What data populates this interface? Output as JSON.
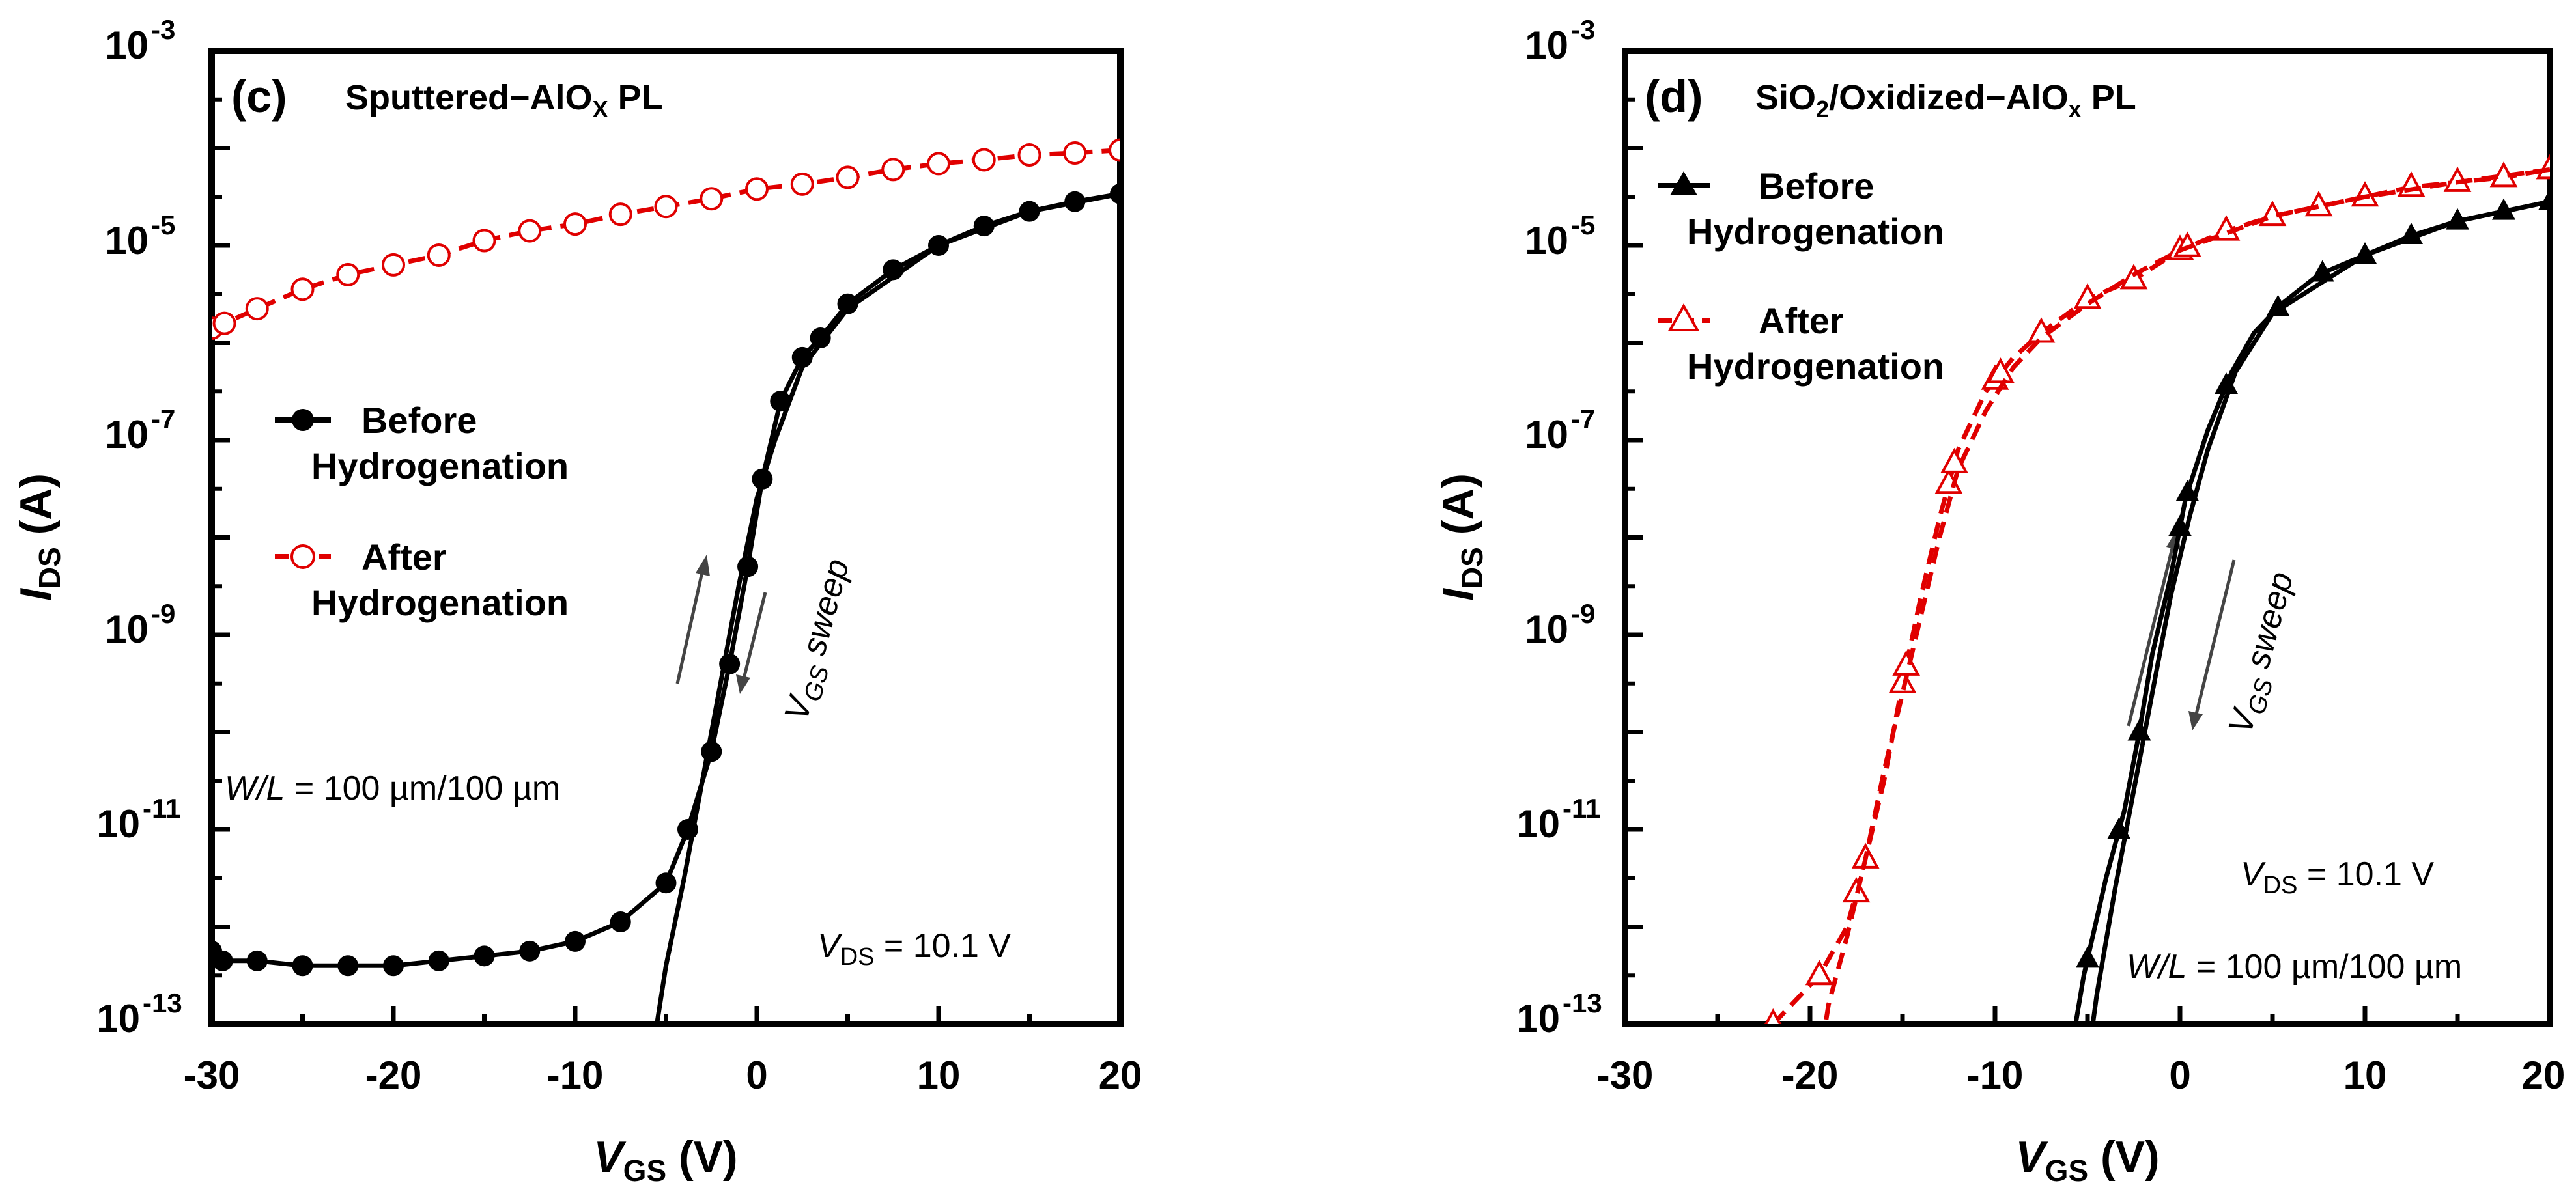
{
  "chart_data": [
    {
      "type": "line",
      "panel_letter": "(c)",
      "title_main": "Sputtered−AlO",
      "title_sub": "X",
      "title_end": " PL",
      "xlabel_main": "V",
      "xlabel_sub": "GS",
      "xlabel_unit": " (V)",
      "ylabel_main": "I",
      "ylabel_sub": "DS",
      "ylabel_unit": " (A)",
      "xlim": [
        -30,
        20
      ],
      "ylim_log10": [
        -13,
        -3
      ],
      "xticks": [
        "-30",
        "-20",
        "-10",
        "0",
        "10",
        "20"
      ],
      "yticks": [
        {
          "base": "10",
          "exp": "-3"
        },
        {
          "base": "10",
          "exp": "-5"
        },
        {
          "base": "10",
          "exp": "-7"
        },
        {
          "base": "10",
          "exp": "-9"
        },
        {
          "base": "10",
          "exp": "-11"
        },
        {
          "base": "10",
          "exp": "-13"
        }
      ],
      "legend": [
        {
          "line1": "Before",
          "line2": "Hydrogenation",
          "color": "#000000",
          "marker": "filled-circle",
          "dash": "solid"
        },
        {
          "line1": "After",
          "line2": "Hydrogenation",
          "color": "#e00000",
          "marker": "open-circle",
          "dash": "dashed"
        }
      ],
      "annotations": {
        "wl_it": "W/L",
        "wl_rest": " = 100 µm/100 µm",
        "vds_v": "V",
        "vds_sub": "DS",
        "vds_rest": " = 10.1 V",
        "sweep_v": "V",
        "sweep_sub": "GS",
        "sweep_rest": " sweep"
      },
      "series": [
        {
          "name": "Before Hydrogenation (forward)",
          "color": "#000000",
          "marker": "filled-circle",
          "x": [
            -30,
            -29.4,
            -27.5,
            -25,
            -22.5,
            -20,
            -17.5,
            -15,
            -12.5,
            -10,
            -7.5,
            -5,
            -3.8,
            -2.5,
            -1.5,
            -0.5,
            0.3,
            1.3,
            2.5,
            3.5,
            5,
            7.5,
            10,
            12.5,
            15,
            17.5,
            20
          ],
          "y_log10": [
            -12.25,
            -12.35,
            -12.35,
            -12.4,
            -12.4,
            -12.4,
            -12.35,
            -12.3,
            -12.25,
            -12.15,
            -11.95,
            -11.55,
            -11.0,
            -10.2,
            -9.3,
            -8.3,
            -7.4,
            -6.6,
            -6.15,
            -5.95,
            -5.6,
            -5.25,
            -5.0,
            -4.8,
            -4.65,
            -4.55,
            -4.47
          ]
        },
        {
          "name": "Before Hydrogenation (reverse)",
          "color": "#000000",
          "marker": "none",
          "x": [
            20,
            15,
            10,
            5,
            2.5,
            1,
            0,
            -1,
            -2,
            -3,
            -4,
            -5,
            -5.5,
            -6
          ],
          "y_log10": [
            -4.47,
            -4.65,
            -5.0,
            -5.65,
            -6.25,
            -7.0,
            -7.6,
            -8.5,
            -9.5,
            -10.5,
            -11.5,
            -12.4,
            -13.0,
            -13.4
          ]
        },
        {
          "name": "After Hydrogenation",
          "color": "#e00000",
          "marker": "open-circle",
          "x": [
            -30,
            -29.3,
            -27.5,
            -25,
            -22.5,
            -20,
            -17.5,
            -15,
            -12.5,
            -10,
            -7.5,
            -5,
            -2.5,
            0,
            2.5,
            5,
            7.5,
            10,
            12.5,
            15,
            17.5,
            20
          ],
          "y_log10": [
            -5.85,
            -5.8,
            -5.65,
            -5.45,
            -5.3,
            -5.2,
            -5.1,
            -4.95,
            -4.85,
            -4.78,
            -4.68,
            -4.6,
            -4.52,
            -4.42,
            -4.37,
            -4.3,
            -4.22,
            -4.16,
            -4.12,
            -4.07,
            -4.05,
            -4.02
          ]
        }
      ]
    },
    {
      "type": "line",
      "panel_letter": "(d)",
      "title_main": "SiO",
      "title_sub2": "2",
      "title_mid": "/Oxidized−AlO",
      "title_sub": "x",
      "title_end": " PL",
      "xlabel_main": "V",
      "xlabel_sub": "GS",
      "xlabel_unit": " (V)",
      "ylabel_main": "I",
      "ylabel_sub": "DS",
      "ylabel_unit": " (A)",
      "xlim": [
        -30,
        20
      ],
      "ylim_log10": [
        -13,
        -3
      ],
      "xticks": [
        "-30",
        "-20",
        "-10",
        "0",
        "10",
        "20"
      ],
      "yticks": [
        {
          "base": "10",
          "exp": "-3"
        },
        {
          "base": "10",
          "exp": "-5"
        },
        {
          "base": "10",
          "exp": "-7"
        },
        {
          "base": "10",
          "exp": "-9"
        },
        {
          "base": "10",
          "exp": "-11"
        },
        {
          "base": "10",
          "exp": "-13"
        }
      ],
      "legend": [
        {
          "line1": "Before",
          "line2": "Hydrogenation",
          "color": "#000000",
          "marker": "filled-triangle",
          "dash": "solid"
        },
        {
          "line1": "After",
          "line2": "Hydrogenation",
          "color": "#e00000",
          "marker": "open-triangle",
          "dash": "dashed"
        }
      ],
      "annotations": {
        "vds_v": "V",
        "vds_sub": "DS",
        "vds_rest": " = 10.1 V",
        "wl_it": "W/L",
        "wl_rest": " = 100 µm/100 µm",
        "sweep_v": "V",
        "sweep_sub": "GS",
        "sweep_rest": " sweep"
      },
      "series": [
        {
          "name": "Before Hydrogenation (forward)",
          "color": "#000000",
          "marker": "filled-triangle",
          "x": [
            -6,
            -5.2,
            -4,
            -3,
            -2.2,
            -1.5,
            -0.5,
            0.3,
            1.5,
            2.8,
            4,
            5.5,
            7.5,
            10,
            12.5,
            15,
            17.5,
            20
          ],
          "y_log10": [
            -13.4,
            -12.5,
            -11.5,
            -10.8,
            -10.0,
            -9.2,
            -8.4,
            -7.6,
            -6.9,
            -6.3,
            -5.9,
            -5.6,
            -5.3,
            -5.1,
            -4.9,
            -4.75,
            -4.65,
            -4.55
          ],
          "markers_at": [
            -5,
            -3.3,
            -2.2,
            0,
            0.4,
            2.5,
            5.3,
            7.7,
            10,
            12.5,
            15,
            17.5,
            20
          ]
        },
        {
          "name": "Before Hydrogenation (reverse)",
          "color": "#000000",
          "marker": "none",
          "x": [
            20,
            15,
            10,
            5,
            3,
            1.5,
            0.5,
            -0.5,
            -1.5,
            -2.5,
            -3.5,
            -4.5,
            -5
          ],
          "y_log10": [
            -4.55,
            -4.75,
            -5.1,
            -5.7,
            -6.3,
            -7.1,
            -7.8,
            -8.6,
            -9.6,
            -10.6,
            -11.6,
            -12.7,
            -13.4
          ]
        },
        {
          "name": "After Hydrogenation (forward)",
          "color": "#e00000",
          "marker": "open-triangle",
          "x": [
            -22,
            -19.5,
            -18,
            -17,
            -16,
            -15,
            -14,
            -13,
            -12,
            -10.5,
            -9,
            -7.5,
            -5,
            -2.5,
            0,
            2.5,
            5,
            7.5,
            10,
            12.5,
            15,
            17.5,
            20
          ],
          "y_log10": [
            -13.0,
            -12.5,
            -12.0,
            -11.3,
            -10.5,
            -9.5,
            -8.6,
            -7.8,
            -7.1,
            -6.5,
            -6.15,
            -5.9,
            -5.55,
            -5.35,
            -5.05,
            -4.85,
            -4.7,
            -4.6,
            -4.5,
            -4.4,
            -4.35,
            -4.3,
            -4.22
          ],
          "markers_at": [
            -22,
            -19.5,
            -17.5,
            -17,
            -15,
            -14.8,
            -12.5,
            -12.2,
            -10,
            -9.7,
            -7.5,
            -5,
            -2.5,
            0,
            0.4,
            2.5,
            5,
            7.5,
            10,
            12.5,
            15,
            17.5,
            20
          ]
        },
        {
          "name": "After Hydrogenation (reverse)",
          "color": "#e00000",
          "marker": "none",
          "x": [
            20,
            15,
            10,
            5,
            0,
            -2.5,
            -5,
            -7.5,
            -9,
            -10.5,
            -12,
            -13,
            -14,
            -15,
            -16,
            -17,
            -18,
            -19,
            -19.5
          ],
          "y_log10": [
            -4.22,
            -4.35,
            -4.5,
            -4.7,
            -5.05,
            -5.3,
            -5.6,
            -5.95,
            -6.25,
            -6.7,
            -7.3,
            -8.0,
            -8.8,
            -9.6,
            -10.4,
            -11.3,
            -12.1,
            -12.8,
            -13.4
          ]
        }
      ]
    }
  ]
}
